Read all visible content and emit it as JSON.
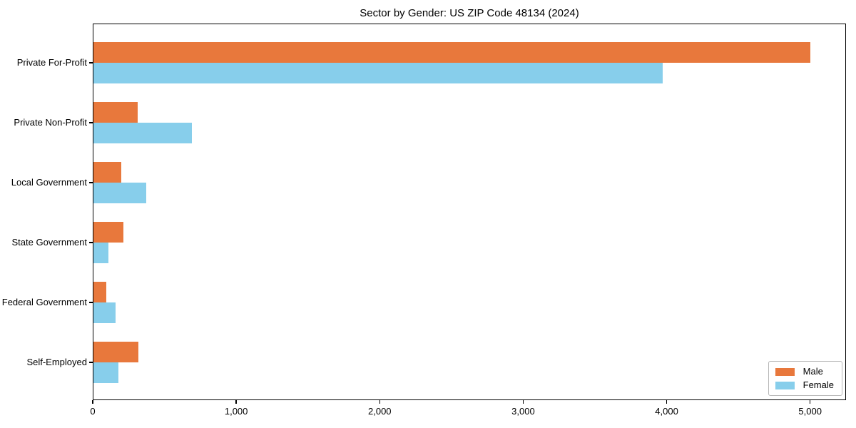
{
  "chart_data": {
    "type": "bar",
    "orientation": "horizontal",
    "title": "Sector by Gender: US ZIP Code 48134 (2024)",
    "categories": [
      "Private For-Profit",
      "Private Non-Profit",
      "Local Government",
      "State Government",
      "Federal Government",
      "Self-Employed"
    ],
    "series": [
      {
        "name": "Male",
        "color": "#E8783C",
        "values": [
          5000,
          315,
          200,
          215,
          95,
          320
        ]
      },
      {
        "name": "Female",
        "color": "#87CEEB",
        "values": [
          3970,
          690,
          375,
          110,
          160,
          178
        ]
      }
    ],
    "xlabel": "",
    "ylabel": "",
    "xlim": [
      0,
      5250
    ],
    "xticks": [
      0,
      1000,
      2000,
      3000,
      4000,
      5000
    ],
    "xtick_labels": [
      "0",
      "1,000",
      "2,000",
      "3,000",
      "4,000",
      "5,000"
    ],
    "grid": false,
    "legend": {
      "position": "lower right",
      "entries": [
        "Male",
        "Female"
      ]
    }
  }
}
